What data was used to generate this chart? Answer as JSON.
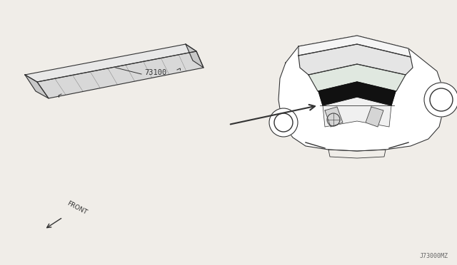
{
  "bg_color": "#f0ede8",
  "line_color": "#333333",
  "part_number": "73100",
  "front_label": "FRONT",
  "diagram_code": "J73000MZ"
}
